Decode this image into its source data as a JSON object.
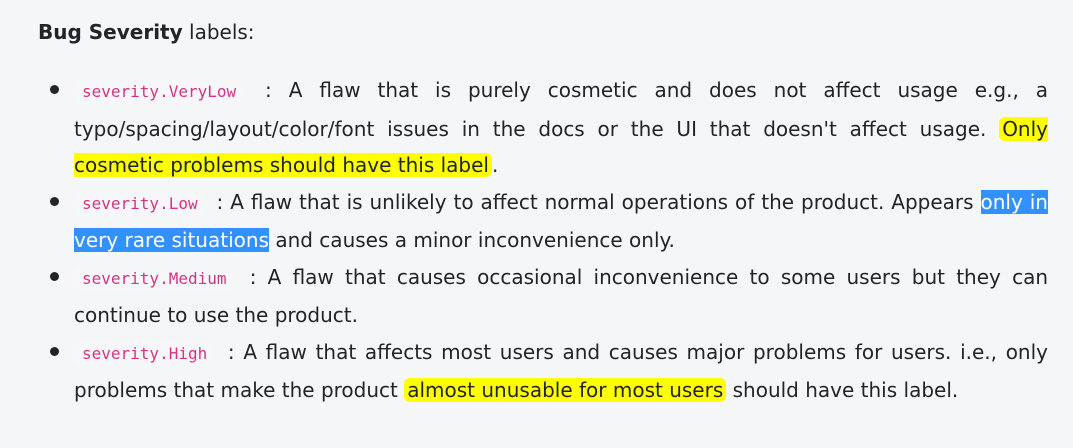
{
  "heading": {
    "bold": "Bug Severity",
    "rest": " labels:"
  },
  "items": [
    {
      "tag": "severity.VeryLow",
      "text_a": " : A flaw that is purely cosmetic and does not affect usage e.g., a typo/spacing/layout/color/font issues in the docs or the UI that doesn't affect usage. ",
      "highlight": "Only cosmetic problems should have this label",
      "text_b": "."
    },
    {
      "tag": "severity.Low",
      "text_a": " : A flaw that is unlikely to affect normal operations of the product. Appears ",
      "selection": "only in very rare situations",
      "text_b": " and causes a minor inconvenience only."
    },
    {
      "tag": "severity.Medium",
      "text_a": " : A flaw that causes occasional inconvenience to some users but they can continue to use the product."
    },
    {
      "tag": "severity.High",
      "text_a": " : A flaw that affects most users and causes major problems for users. i.e., only problems that make the product ",
      "highlight": "almost unusable for most users",
      "text_b": " should have this label."
    }
  ],
  "colors": {
    "highlight": "#ffff00",
    "selection": "#3390ff",
    "code_text": "#d63384"
  }
}
